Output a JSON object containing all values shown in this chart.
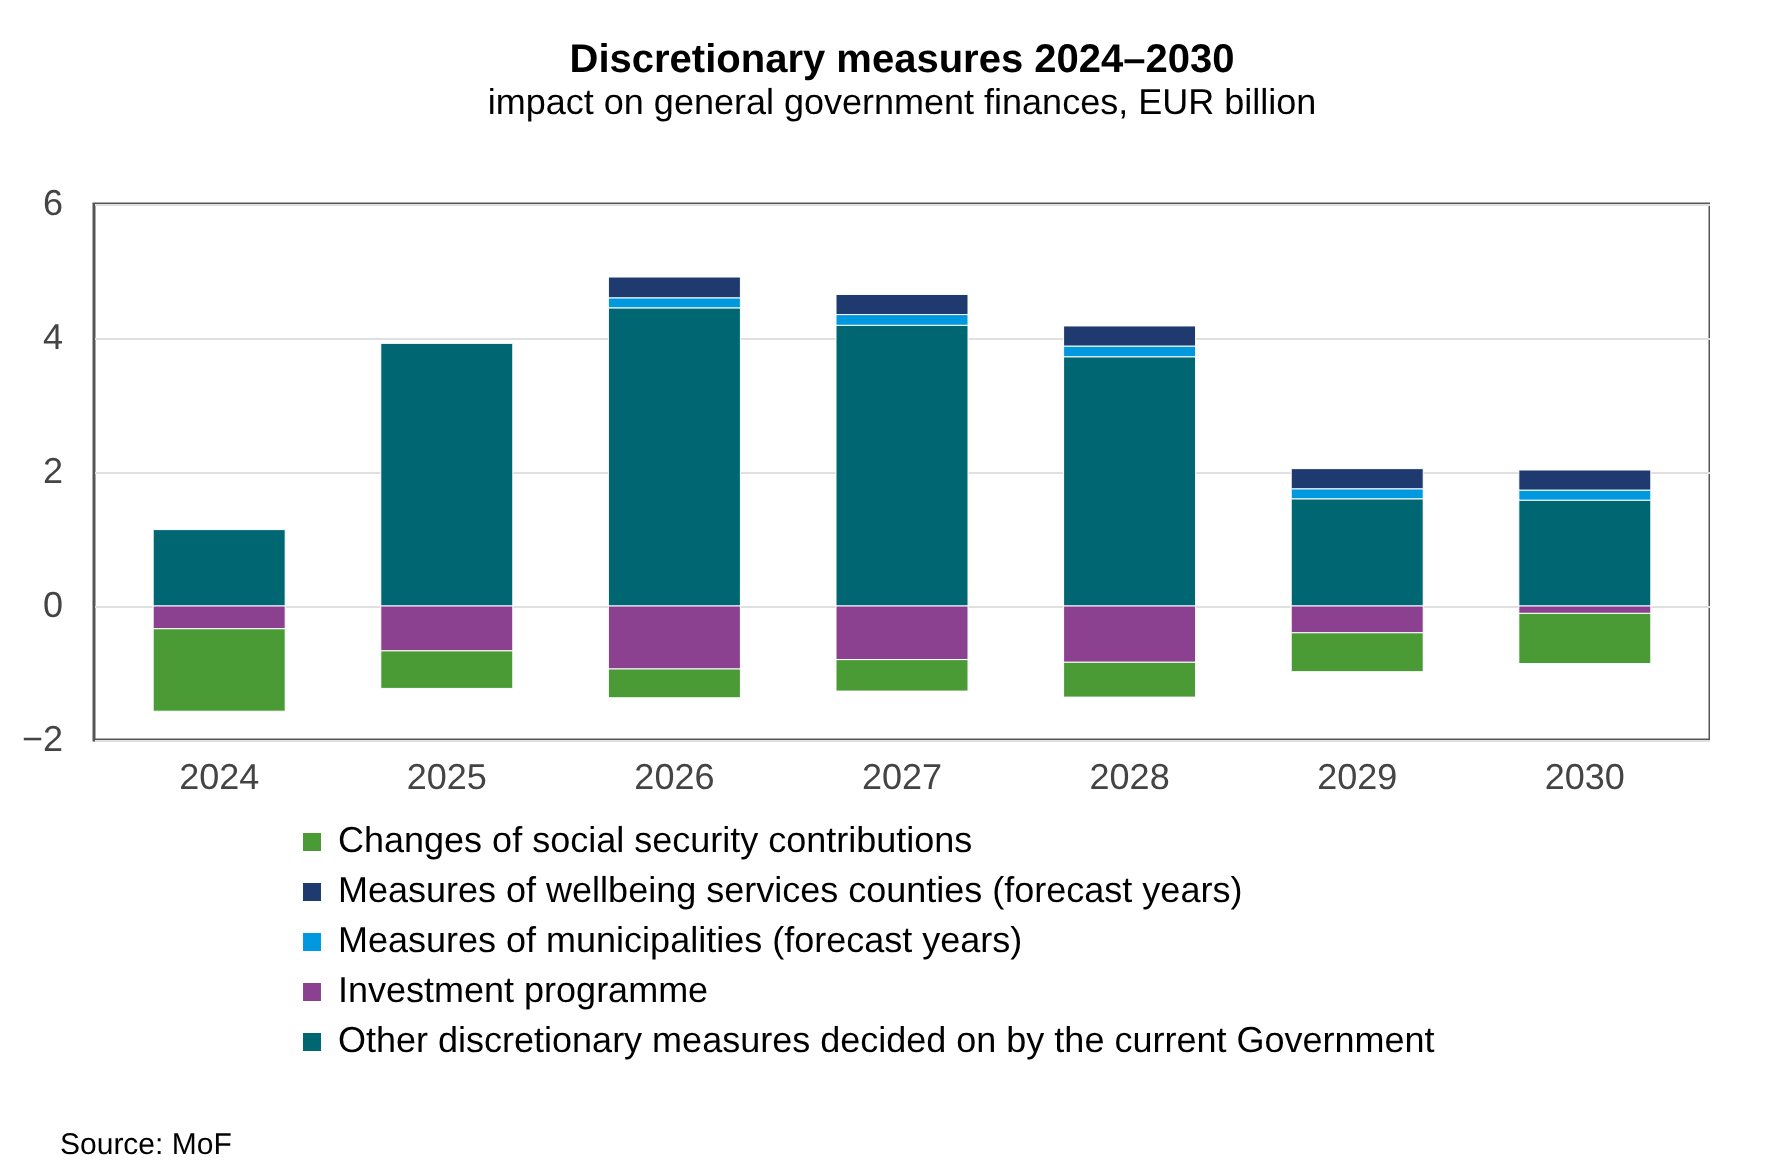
{
  "chart_data": {
    "type": "bar",
    "title": "Discretionary measures 2024–2030",
    "subtitle": "impact on general government finances, EUR billion",
    "categories": [
      "2024",
      "2025",
      "2026",
      "2027",
      "2028",
      "2029",
      "2030"
    ],
    "stacked": true,
    "series": [
      {
        "name": "Other discretionary measures decided on by the current Government",
        "color": "#006672",
        "values": [
          1.14,
          3.92,
          4.45,
          4.19,
          3.72,
          1.6,
          1.58
        ]
      },
      {
        "name": "Measures of municipalities (forecast years)",
        "color": "#0099e0",
        "values": [
          null,
          null,
          0.15,
          0.16,
          0.16,
          0.15,
          0.15
        ]
      },
      {
        "name": "Measures of wellbeing services counties (forecast years)",
        "color": "#1f3a6e",
        "values": [
          null,
          null,
          0.31,
          0.3,
          0.3,
          0.3,
          0.3
        ]
      },
      {
        "name": "Investment programme",
        "color": "#8b418f",
        "values": [
          -0.34,
          -0.67,
          -0.94,
          -0.8,
          -0.84,
          -0.4,
          -0.11
        ]
      },
      {
        "name": "Changes of social security contributions",
        "color": "#4a9a36",
        "values": [
          -1.23,
          -0.56,
          -0.43,
          -0.47,
          -0.52,
          -0.58,
          -0.75
        ]
      }
    ],
    "ylim": [
      -2,
      6
    ],
    "yticks": [
      -2,
      0,
      2,
      4,
      6
    ],
    "grid": "y",
    "legend": "bottom",
    "annotations": [
      "Source: MoF"
    ]
  }
}
